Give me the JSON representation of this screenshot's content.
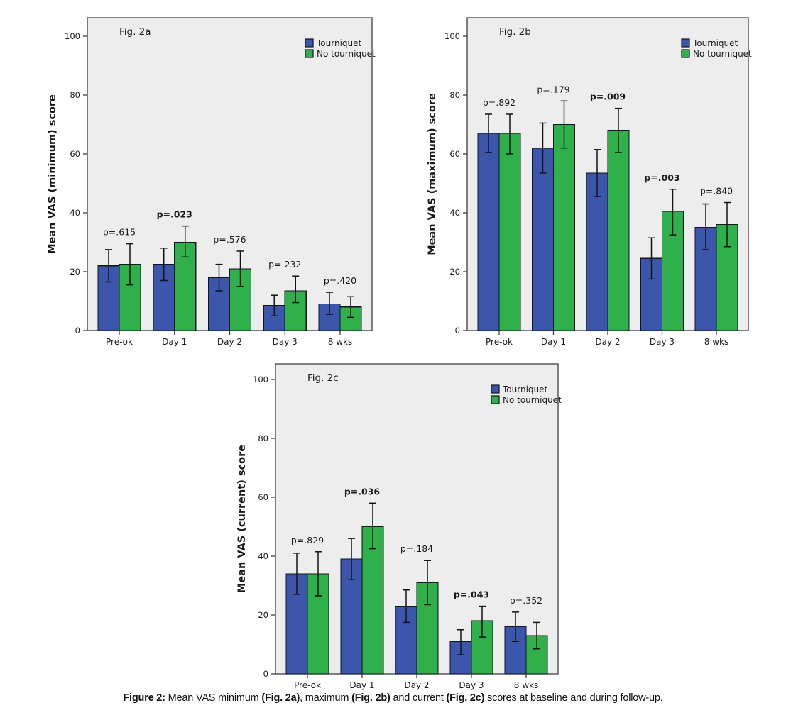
{
  "colors": {
    "tourniquet": "#3C56AB",
    "no_tourniquet": "#2FB04B",
    "bar_border": "#10151f",
    "plot_bg": "#ededed",
    "frame": "#3f3f3f",
    "error_bar": "#141414",
    "text": "#1a1a1a"
  },
  "legend": {
    "items": [
      {
        "label": "Tourniquet",
        "color": "#3C56AB"
      },
      {
        "label": "No tourniquet",
        "color": "#2FB04B"
      }
    ]
  },
  "chart_data": [
    {
      "id": "fig2a",
      "type": "bar",
      "title": "Fig. 2a",
      "ylabel": "Mean VAS (minimum) score",
      "xlabel": "",
      "ylim": [
        0,
        100
      ],
      "yticks": [
        0,
        20,
        40,
        60,
        80,
        100
      ],
      "grid": false,
      "legend_position": "top-right-inside",
      "categories": [
        "Pre-ok",
        "Day 1",
        "Day 2",
        "Day 3",
        "8 wks"
      ],
      "series": [
        {
          "name": "Tourniquet",
          "values": [
            22,
            22.5,
            18,
            8.5,
            9
          ],
          "err_low": [
            16.5,
            17,
            13.5,
            5,
            5.5
          ],
          "err_high": [
            27.5,
            28,
            22.5,
            12,
            13
          ]
        },
        {
          "name": "No tourniquet",
          "values": [
            22.5,
            30,
            21,
            13.5,
            8
          ],
          "err_low": [
            15.5,
            25,
            15,
            9.5,
            4.5
          ],
          "err_high": [
            29.5,
            35.5,
            27,
            18.5,
            11.5
          ]
        }
      ],
      "p_values": [
        {
          "label": "p=.615",
          "bold": false
        },
        {
          "label": "p=.023",
          "bold": true
        },
        {
          "label": "p=.576",
          "bold": false
        },
        {
          "label": "p=.232",
          "bold": false
        },
        {
          "label": "p=.420",
          "bold": false
        }
      ]
    },
    {
      "id": "fig2b",
      "type": "bar",
      "title": "Fig. 2b",
      "ylabel": "Mean VAS (maximum) score",
      "xlabel": "",
      "ylim": [
        0,
        100
      ],
      "yticks": [
        0,
        20,
        40,
        60,
        80,
        100
      ],
      "grid": false,
      "legend_position": "top-right-inside",
      "categories": [
        "Pre-ok",
        "Day 1",
        "Day 2",
        "Day 3",
        "8 wks"
      ],
      "series": [
        {
          "name": "Tourniquet",
          "values": [
            67,
            62,
            53.5,
            24.5,
            35
          ],
          "err_low": [
            60.5,
            53.5,
            45.5,
            17.5,
            27.5
          ],
          "err_high": [
            73.5,
            70.5,
            61.5,
            31.5,
            43
          ]
        },
        {
          "name": "No tourniquet",
          "values": [
            67,
            70,
            68,
            40.5,
            36
          ],
          "err_low": [
            60,
            62,
            60.5,
            32.5,
            28.5
          ],
          "err_high": [
            73.5,
            78,
            75.5,
            48,
            43.5
          ]
        }
      ],
      "p_values": [
        {
          "label": "p=.892",
          "bold": false
        },
        {
          "label": "p=.179",
          "bold": false
        },
        {
          "label": "p=.009",
          "bold": true
        },
        {
          "label": "p=.003",
          "bold": true
        },
        {
          "label": "p=.840",
          "bold": false
        }
      ]
    },
    {
      "id": "fig2c",
      "type": "bar",
      "title": "Fig. 2c",
      "ylabel": "Mean VAS (current) score",
      "xlabel": "",
      "ylim": [
        0,
        100
      ],
      "yticks": [
        0,
        20,
        40,
        60,
        80,
        100
      ],
      "grid": false,
      "legend_position": "top-right-inside",
      "categories": [
        "Pre-ok",
        "Day 1",
        "Day 2",
        "Day 3",
        "8 wks"
      ],
      "series": [
        {
          "name": "Tourniquet",
          "values": [
            34,
            39,
            23,
            11,
            16
          ],
          "err_low": [
            27,
            32,
            17.5,
            6.5,
            11
          ],
          "err_high": [
            41,
            46,
            28.5,
            15,
            21
          ]
        },
        {
          "name": "No tourniquet",
          "values": [
            34,
            50,
            31,
            18,
            13
          ],
          "err_low": [
            26.5,
            42.5,
            23.5,
            12.5,
            8.5
          ],
          "err_high": [
            41.5,
            58,
            38.5,
            23,
            17.5
          ]
        }
      ],
      "p_values": [
        {
          "label": "p=.829",
          "bold": false
        },
        {
          "label": "p=.036",
          "bold": true
        },
        {
          "label": "p=.184",
          "bold": false
        },
        {
          "label": "p=.043",
          "bold": true
        },
        {
          "label": "p=.352",
          "bold": false
        }
      ]
    }
  ],
  "caption": {
    "segments": [
      {
        "text": "Figure 2:",
        "bold": true
      },
      {
        "text": " Mean VAS minimum ",
        "bold": false
      },
      {
        "text": "(Fig. 2a)",
        "bold": true
      },
      {
        "text": ", maximum ",
        "bold": false
      },
      {
        "text": "(Fig. 2b)",
        "bold": true
      },
      {
        "text": " and current ",
        "bold": false
      },
      {
        "text": "(Fig. 2c)",
        "bold": true
      },
      {
        "text": " scores at baseline and during follow-up.",
        "bold": false
      }
    ]
  }
}
